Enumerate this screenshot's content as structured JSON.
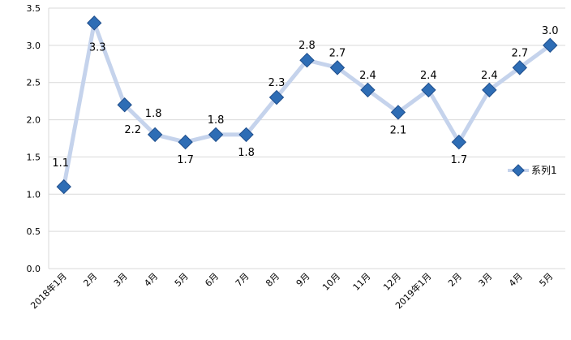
{
  "chart_data": {
    "type": "line",
    "categories": [
      "2018年1月",
      "2月",
      "3月",
      "4月",
      "5月",
      "6月",
      "7月",
      "8月",
      "9月",
      "10月",
      "11月",
      "12月",
      "2019年1月",
      "2月",
      "3月",
      "4月",
      "5月"
    ],
    "series": [
      {
        "name": "系列1",
        "values": [
          1.1,
          3.3,
          2.2,
          1.8,
          1.7,
          1.8,
          1.8,
          2.3,
          2.8,
          2.7,
          2.4,
          2.1,
          2.4,
          1.7,
          2.4,
          2.7,
          3.0
        ]
      }
    ],
    "data_labels": [
      "1.1",
      "3.3",
      "2.2",
      "1.8",
      "1.7",
      "1.8",
      "1.8",
      "2.3",
      "2.8",
      "2.7",
      "2.4",
      "2.1",
      "2.4",
      "1.7",
      "2.4",
      "2.7",
      "3.0"
    ],
    "y_ticks": [
      "0.0",
      "0.5",
      "1.0",
      "1.5",
      "2.0",
      "2.5",
      "3.0",
      "3.5"
    ],
    "ylim": [
      0,
      3.5
    ],
    "grid": true,
    "legend": {
      "position": "right",
      "label": "系列1"
    },
    "colors": {
      "line": "#c5d3ec",
      "marker": "#2e6db5",
      "marker_edge": "#1f4e8c",
      "grid": "#d9d9d9"
    }
  }
}
